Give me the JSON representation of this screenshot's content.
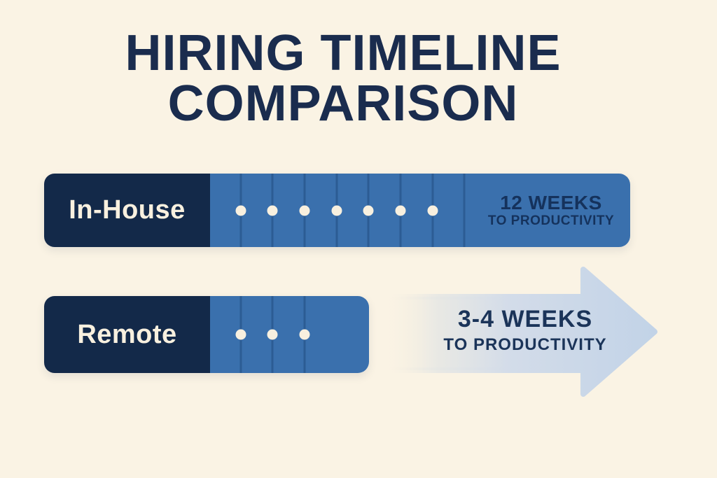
{
  "title": {
    "line1": "HIRING TIMELINE",
    "line2": "COMPARISON"
  },
  "colors": {
    "background": "#faf3e4",
    "navy": "#132949",
    "blue": "#3a70ad",
    "divider": "#2c5c94",
    "dot": "#f8f0df",
    "arrow_light_blue": "#c2d3e7",
    "value_text_navy": "#15325c"
  },
  "chart_data": {
    "type": "bar",
    "title": "HIRING TIMELINE COMPARISON",
    "categories": [
      "In-House",
      "Remote"
    ],
    "series": [
      {
        "name": "Weeks to productivity",
        "values": [
          12,
          3.5
        ]
      }
    ],
    "xlabel": "",
    "ylabel": "Weeks to productivity",
    "legend": "none",
    "grid": false,
    "rows": [
      {
        "label": "In-House",
        "weeks": "12",
        "value_label": "12 WEEKS",
        "caption": "TO PRODUCTIVITY",
        "dots": 7,
        "segment_lines": 8
      },
      {
        "label": "Remote",
        "weeks": "3-4",
        "value_label": "3-4 WEEKS",
        "caption": "TO PRODUCTIVITY",
        "dots": 3,
        "segment_lines": 3
      }
    ]
  }
}
